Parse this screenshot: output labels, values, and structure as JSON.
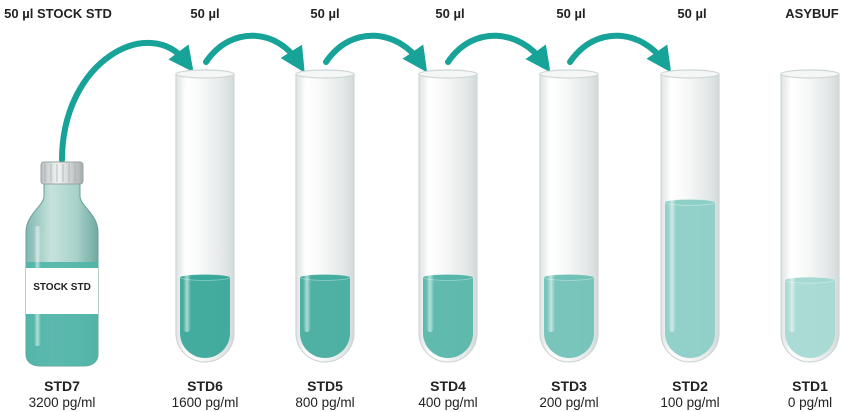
{
  "top_labels": {
    "stock": "50 µl STOCK STD",
    "std6": "50 µl",
    "std5": "50 µl",
    "std4": "50 µl",
    "std3": "50 µl",
    "std2": "50 µl",
    "std1": "ASYBUF"
  },
  "bottle": {
    "label": "STOCK STD",
    "name": "STD7",
    "concentration": "3200 pg/ml",
    "liquid_color": "#4fb5a7"
  },
  "tubes": [
    {
      "name": "STD6",
      "concentration": "1600 pg/ml",
      "fill_level": 0.29,
      "liquid_color": "#3aa89a"
    },
    {
      "name": "STD5",
      "concentration": "800 pg/ml",
      "fill_level": 0.29,
      "liquid_color": "#45ad9f"
    },
    {
      "name": "STD4",
      "concentration": "400 pg/ml",
      "fill_level": 0.29,
      "liquid_color": "#57b6aa"
    },
    {
      "name": "STD3",
      "concentration": "200 pg/ml",
      "fill_level": 0.29,
      "liquid_color": "#72c2b8"
    },
    {
      "name": "STD2",
      "concentration": "100 pg/ml",
      "fill_level": 0.56,
      "liquid_color": "#8ccfc6"
    },
    {
      "name": "STD1",
      "concentration": "0 pg/ml",
      "fill_level": 0.28,
      "liquid_color": "#a5d9d2"
    }
  ],
  "colors": {
    "arrow": "#17a398",
    "glass": "#e9ecec",
    "glass_edge": "#cfd5d5"
  }
}
